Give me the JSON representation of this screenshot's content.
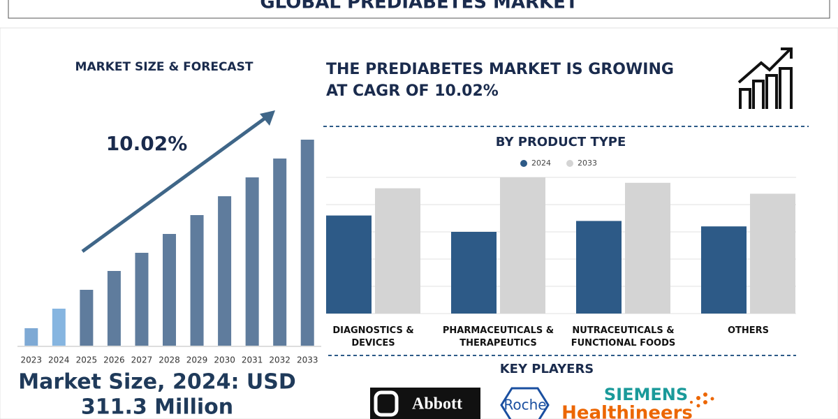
{
  "header": {
    "title": "GLOBAL PREDIABETES MARKET"
  },
  "left_panel": {
    "heading": "MARKET SIZE & FORECAST",
    "market_size_lines": [
      "Market Size, 2024: USD",
      "311.3 Million"
    ]
  },
  "headline": {
    "lines": [
      "THE PREDIABETES MARKET IS GROWING",
      "AT CAGR OF 10.02%"
    ]
  },
  "chart_data": [
    {
      "type": "bar",
      "annotation": "10.02%",
      "categories": [
        "2023",
        "2024",
        "2025",
        "2026",
        "2027",
        "2028",
        "2029",
        "2030",
        "2031",
        "2032",
        "2033"
      ],
      "values": [
        25,
        53,
        80,
        107,
        133,
        160,
        187,
        214,
        241,
        268,
        295
      ],
      "colors": [
        "#7ea9d4",
        "#86b5e0",
        "#5f7c9d",
        "#5f7c9d",
        "#5f7c9d",
        "#5f7c9d",
        "#5f7c9d",
        "#5f7c9d",
        "#5f7c9d",
        "#5f7c9d",
        "#5f7c9d"
      ],
      "ylim": [
        0,
        300
      ]
    },
    {
      "type": "grouped_bar",
      "title": "BY PRODUCT TYPE",
      "categories": [
        "DIAGNOSTICS & DEVICES",
        "PHARMACEUTICALS & THERAPEUTICS",
        "NUTRACEUTICALS & FUNCTIONAL FOODS",
        "OTHERS"
      ],
      "series": [
        {
          "name": "2024",
          "color": "#2d5a87",
          "values": [
            3.6,
            3.0,
            3.4,
            3.2
          ]
        },
        {
          "name": "2033",
          "color": "#d4d4d4",
          "values": [
            4.6,
            5.0,
            4.8,
            4.4
          ]
        }
      ],
      "ylim": [
        0,
        5
      ],
      "yticks": [
        0,
        1,
        2,
        3,
        4,
        5
      ],
      "grid": true
    }
  ],
  "key_players": {
    "title": "KEY PLAYERS",
    "logos": [
      "Abbott",
      "Roche",
      "SIEMENS",
      "Healthineers"
    ]
  }
}
